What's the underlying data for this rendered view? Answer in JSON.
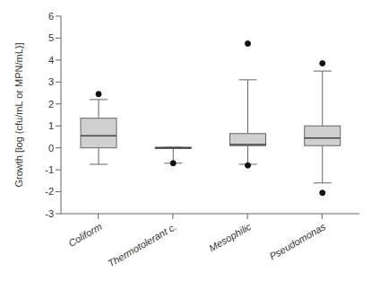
{
  "chart_data": {
    "type": "box",
    "ylabel": "Growth [log (cfu/mL or MPN/mL)]",
    "categories": [
      "Coliform",
      "Thermotolerant c.",
      "Mesophilic",
      "Pseudomonas"
    ],
    "boxes": [
      {
        "q1": 0.0,
        "median": 0.55,
        "q3": 1.35,
        "whislo": -0.75,
        "whishi": 2.2,
        "fliers": [
          2.45
        ]
      },
      {
        "q1": -0.03,
        "median": 0.0,
        "q3": 0.03,
        "whislo": -0.7,
        "whishi": 0.03,
        "fliers": [
          -0.7
        ]
      },
      {
        "q1": 0.1,
        "median": 0.15,
        "q3": 0.65,
        "whislo": -0.75,
        "whishi": 3.1,
        "fliers": [
          4.75,
          -0.8
        ]
      },
      {
        "q1": 0.1,
        "median": 0.45,
        "q3": 1.0,
        "whislo": -1.6,
        "whishi": 3.5,
        "fliers": [
          3.85,
          -2.05
        ]
      }
    ],
    "ylim": [
      -3,
      6
    ],
    "yticks": [
      -3,
      -2,
      -1,
      0,
      1,
      2,
      3,
      4,
      5,
      6
    ],
    "color": "#d0d0d0",
    "grid": false
  }
}
